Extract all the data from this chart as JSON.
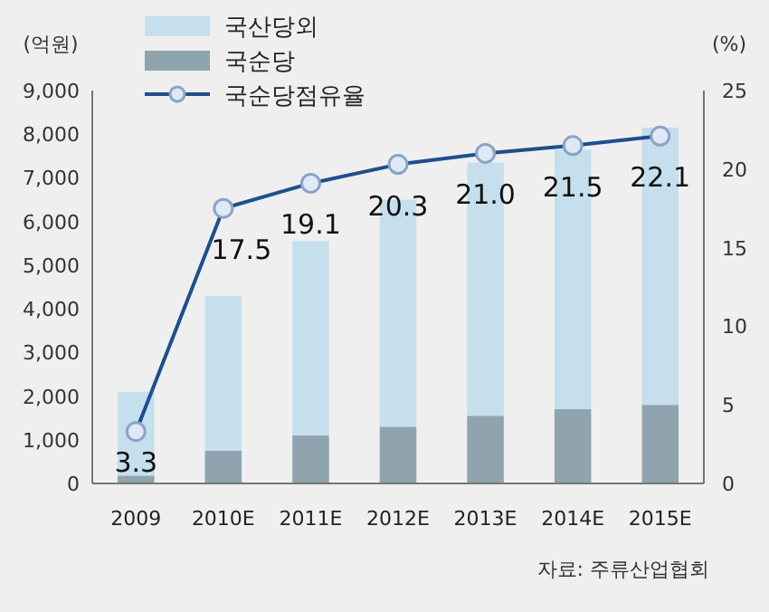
{
  "chart_data": {
    "type": "bar",
    "stacked": true,
    "ylabel": "(억원)",
    "y2label": "(%)",
    "categories": [
      "2009",
      "2010E",
      "2011E",
      "2012E",
      "2013E",
      "2014E",
      "2015E"
    ],
    "series": [
      {
        "name": "국순당",
        "color": "#8fa4ae",
        "values": [
          180,
          750,
          1100,
          1300,
          1550,
          1700,
          1800
        ]
      },
      {
        "name": "국산당외",
        "color": "#c5dfec",
        "values": [
          1920,
          3550,
          4450,
          5200,
          5800,
          5950,
          6350
        ]
      },
      {
        "name": "국순당점유율",
        "type": "line",
        "axis": "y2",
        "color": "#1f4e8c",
        "marker": "circle",
        "values": [
          3.3,
          17.5,
          19.1,
          20.3,
          21.0,
          21.5,
          22.1
        ],
        "value_labels": [
          "3.3",
          "17.5",
          "19.1",
          "20.3",
          "21.0",
          "21.5",
          "22.1"
        ]
      }
    ],
    "ylim": [
      0,
      9000
    ],
    "yticks": [
      0,
      {
        "value": 1000,
        "label": "1,000"
      },
      {
        "value": 2000,
        "label": "2,000"
      },
      {
        "value": 3000,
        "label": "3,000"
      },
      {
        "value": 4000,
        "label": "4,000"
      },
      {
        "value": 5000,
        "label": "5,000"
      },
      {
        "value": 6000,
        "label": "6,000"
      },
      {
        "value": 7000,
        "label": "7,000"
      },
      {
        "value": 8000,
        "label": "8,000"
      },
      {
        "value": 9000,
        "label": "9,000"
      }
    ],
    "y2lim": [
      0,
      25
    ],
    "y2ticks": [
      0,
      5,
      10,
      15,
      20,
      25
    ],
    "legend": "top left",
    "grid": false,
    "annotations": [
      "자료: 주류산업협회"
    ]
  }
}
